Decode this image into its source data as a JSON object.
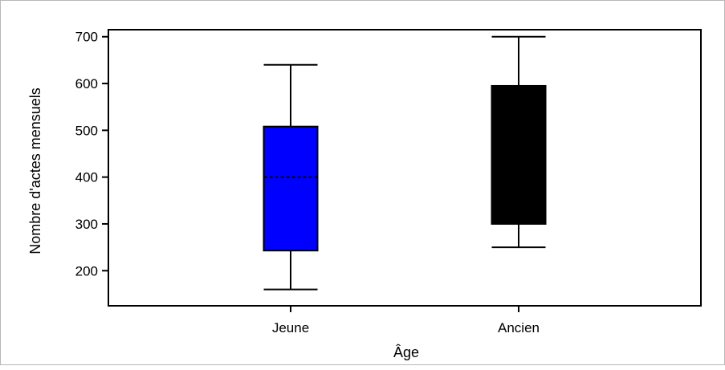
{
  "chart_data": {
    "type": "boxplot",
    "xlabel": "Âge",
    "ylabel": "Nombre d'actes mensuels",
    "ylim": [
      125,
      715
    ],
    "yticks": [
      200,
      300,
      400,
      500,
      600,
      700
    ],
    "categories": [
      "Jeune",
      "Ancien"
    ],
    "boxes": [
      {
        "category": "Jeune",
        "min": 160,
        "q1": 243,
        "median": 400,
        "q3": 508,
        "max": 640,
        "color": "#0000ff",
        "median_style": "dashed"
      },
      {
        "category": "Ancien",
        "min": 250,
        "q1": 300,
        "median": null,
        "q3": 595,
        "max": 700,
        "color": "#000000"
      }
    ],
    "grid": false
  }
}
